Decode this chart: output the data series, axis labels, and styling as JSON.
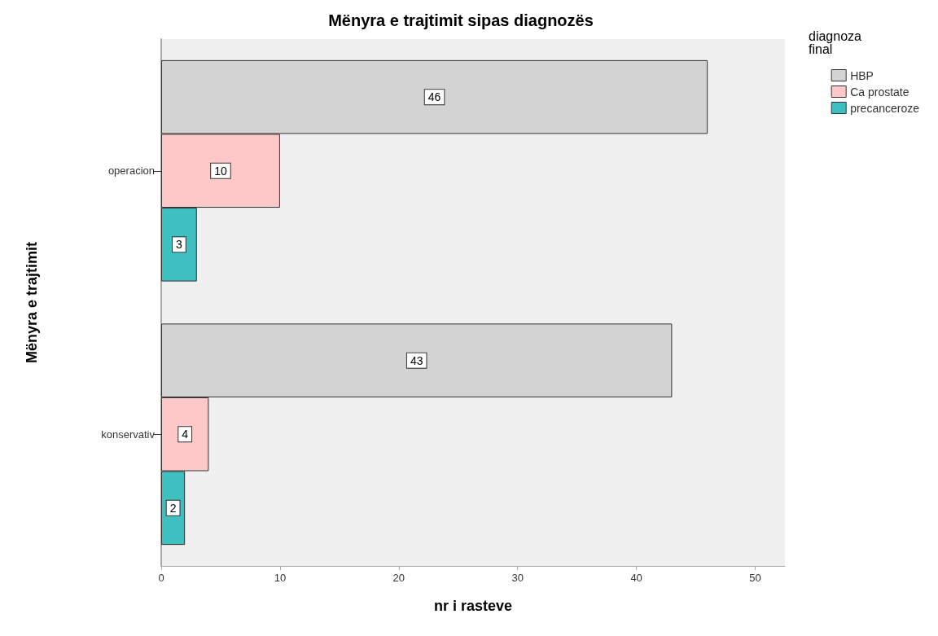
{
  "chart_data": {
    "type": "bar",
    "orientation": "horizontal",
    "title": "Mënyra e trajtimit sipas diagnozës",
    "xlabel": "nr i rasteve",
    "ylabel": "Mënyra e trajtimit",
    "legend_title": "diagnoza\nfinal",
    "categories": [
      "operacion",
      "konservativ"
    ],
    "series": [
      {
        "name": "HBP",
        "color": "#d3d3d3",
        "values": [
          46,
          43
        ]
      },
      {
        "name": "Ca prostate",
        "color": "#ffc8c8",
        "values": [
          10,
          4
        ]
      },
      {
        "name": "precanceroze",
        "color": "#3ebfc0",
        "values": [
          3,
          2
        ]
      }
    ],
    "xlim": [
      0,
      52.5
    ],
    "xticks": [
      0,
      10,
      20,
      30,
      40,
      50
    ],
    "grid": false,
    "legend": "top right",
    "data_labels": true
  }
}
